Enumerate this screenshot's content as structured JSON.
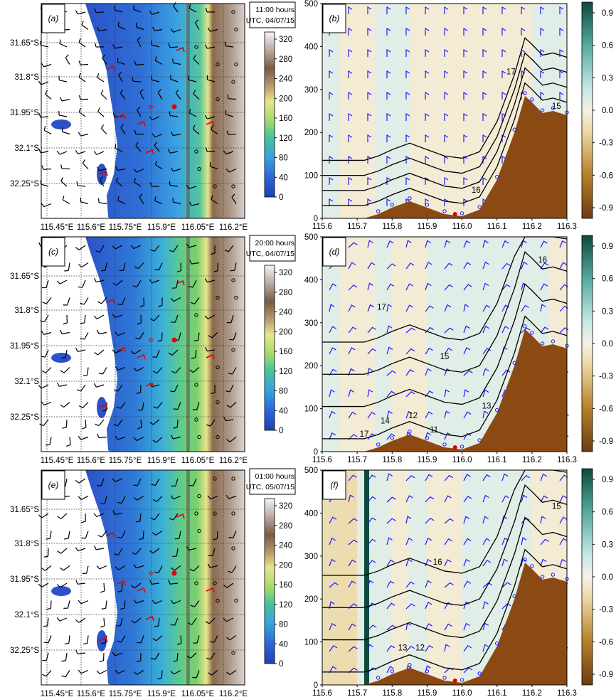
{
  "panels": [
    {
      "map": {
        "label": "(a)",
        "timestamp": [
          "11:00 hours",
          "UTC, 04/07/15"
        ],
        "lon_ticks": [
          "115.45°E",
          "115.6°E",
          "115.75°E",
          "115.9°E",
          "116.05°E",
          "116.2°E"
        ],
        "lat_ticks": [
          "31.65°S",
          "31.8°S",
          "31.95°S",
          "32.1°S",
          "32.25°S"
        ],
        "colorbar_ticks": [
          "320",
          "280",
          "240",
          "200",
          "160",
          "120",
          "80",
          "40",
          "0"
        ],
        "land": "low"
      },
      "section": {
        "label": "(b)",
        "y_ticks": [
          "500",
          "400",
          "300",
          "200",
          "100",
          "0"
        ],
        "x_ticks": [
          "115.6",
          "115.7",
          "115.8",
          "115.9",
          "116.0",
          "116.1",
          "116.2",
          "116.3"
        ],
        "colorbar_ticks": [
          "0.9",
          "0.6",
          "0.3",
          "0.0",
          "-0.3",
          "-0.6",
          "-0.9"
        ],
        "contour_labels": [
          {
            "text": "17",
            "x": 116.14,
            "y": 335
          },
          {
            "text": "15",
            "x": 116.27,
            "y": 255
          },
          {
            "text": "16",
            "x": 116.04,
            "y": 60
          }
        ]
      }
    },
    {
      "map": {
        "label": "(c)",
        "timestamp": [
          "20:00 hours",
          "UTC, 04/07/15"
        ],
        "lon_ticks": [
          "115.45°E",
          "115.6°E",
          "115.75°E",
          "115.9°E",
          "116.05°E",
          "116.2°E"
        ],
        "lat_ticks": [
          "31.65°S",
          "31.8°S",
          "31.95°S",
          "32.1°S",
          "32.25°S"
        ],
        "colorbar_ticks": [
          "320",
          "280",
          "240",
          "200",
          "160",
          "120",
          "80",
          "40",
          "0"
        ],
        "land": "high"
      },
      "section": {
        "label": "(d)",
        "y_ticks": [
          "500",
          "400",
          "300",
          "200",
          "100",
          "0"
        ],
        "x_ticks": [
          "115.6",
          "115.7",
          "115.8",
          "115.9",
          "116.0",
          "116.1",
          "116.2",
          "116.3"
        ],
        "colorbar_ticks": [
          "0.9",
          "0.6",
          "0.3",
          "0.0",
          "-0.3",
          "-0.6",
          "-0.9"
        ],
        "contour_labels": [
          {
            "text": "16",
            "x": 116.23,
            "y": 440
          },
          {
            "text": "17",
            "x": 115.77,
            "y": 330
          },
          {
            "text": "15",
            "x": 115.95,
            "y": 215
          },
          {
            "text": "13",
            "x": 116.07,
            "y": 100
          },
          {
            "text": "14",
            "x": 115.78,
            "y": 65
          },
          {
            "text": "12",
            "x": 115.86,
            "y": 78
          },
          {
            "text": "11",
            "x": 115.92,
            "y": 45
          },
          {
            "text": "17",
            "x": 115.72,
            "y": 35
          }
        ]
      }
    },
    {
      "map": {
        "label": "(e)",
        "timestamp": [
          "01:00 hours",
          "UTC, 05/07/15"
        ],
        "lon_ticks": [
          "115.45°E",
          "115.6°E",
          "115.75°E",
          "115.9°E",
          "116.05°E",
          "116.2°E"
        ],
        "lat_ticks": [
          "31.65°S",
          "31.8°S",
          "31.95°S",
          "32.1°S",
          "32.25°S"
        ],
        "colorbar_ticks": [
          "320",
          "280",
          "240",
          "200",
          "160",
          "120",
          "80",
          "40",
          "0"
        ],
        "land": "high"
      },
      "section": {
        "label": "(f)",
        "y_ticks": [
          "500",
          "400",
          "300",
          "200",
          "100",
          "0"
        ],
        "x_ticks": [
          "115.6",
          "115.7",
          "115.8",
          "115.9",
          "116.0",
          "116.1",
          "116.2",
          "116.3"
        ],
        "colorbar_ticks": [
          "0.9",
          "0.6",
          "0.3",
          "0.0",
          "-0.3",
          "-0.6",
          "-0.9"
        ],
        "contour_labels": [
          {
            "text": "15",
            "x": 116.27,
            "y": 410
          },
          {
            "text": "16",
            "x": 115.93,
            "y": 280
          },
          {
            "text": "13",
            "x": 115.83,
            "y": 80
          },
          {
            "text": "12",
            "x": 115.88,
            "y": 80
          }
        ]
      }
    }
  ],
  "chart_data": [
    {
      "type": "heatmap",
      "title": "",
      "lon_range": [
        115.38,
        116.3
      ],
      "lat_range": [
        -32.38,
        -31.55
      ],
      "colorbar_range": [
        0,
        340
      ],
      "markers": [
        {
          "lon": 115.95,
          "lat": -31.91,
          "color": "#e00000",
          "kind": "station"
        },
        {
          "lon": 115.99,
          "lat": -31.92,
          "color": "#e00000",
          "kind": "station"
        }
      ]
    },
    {
      "type": "heatmap",
      "title": "",
      "xlim": [
        115.6,
        116.3
      ],
      "ylim": [
        0,
        500
      ],
      "colorbar_range": [
        -1.0,
        1.0
      ],
      "terrain_profile": {
        "x": [
          115.6,
          115.72,
          115.76,
          115.8,
          115.85,
          115.9,
          115.95,
          116.0,
          116.05,
          116.1,
          116.15,
          116.18,
          116.2,
          116.23,
          116.26,
          116.3
        ],
        "y": [
          0,
          0,
          10,
          25,
          40,
          25,
          10,
          5,
          20,
          90,
          200,
          285,
          270,
          245,
          250,
          240
        ]
      }
    }
  ]
}
